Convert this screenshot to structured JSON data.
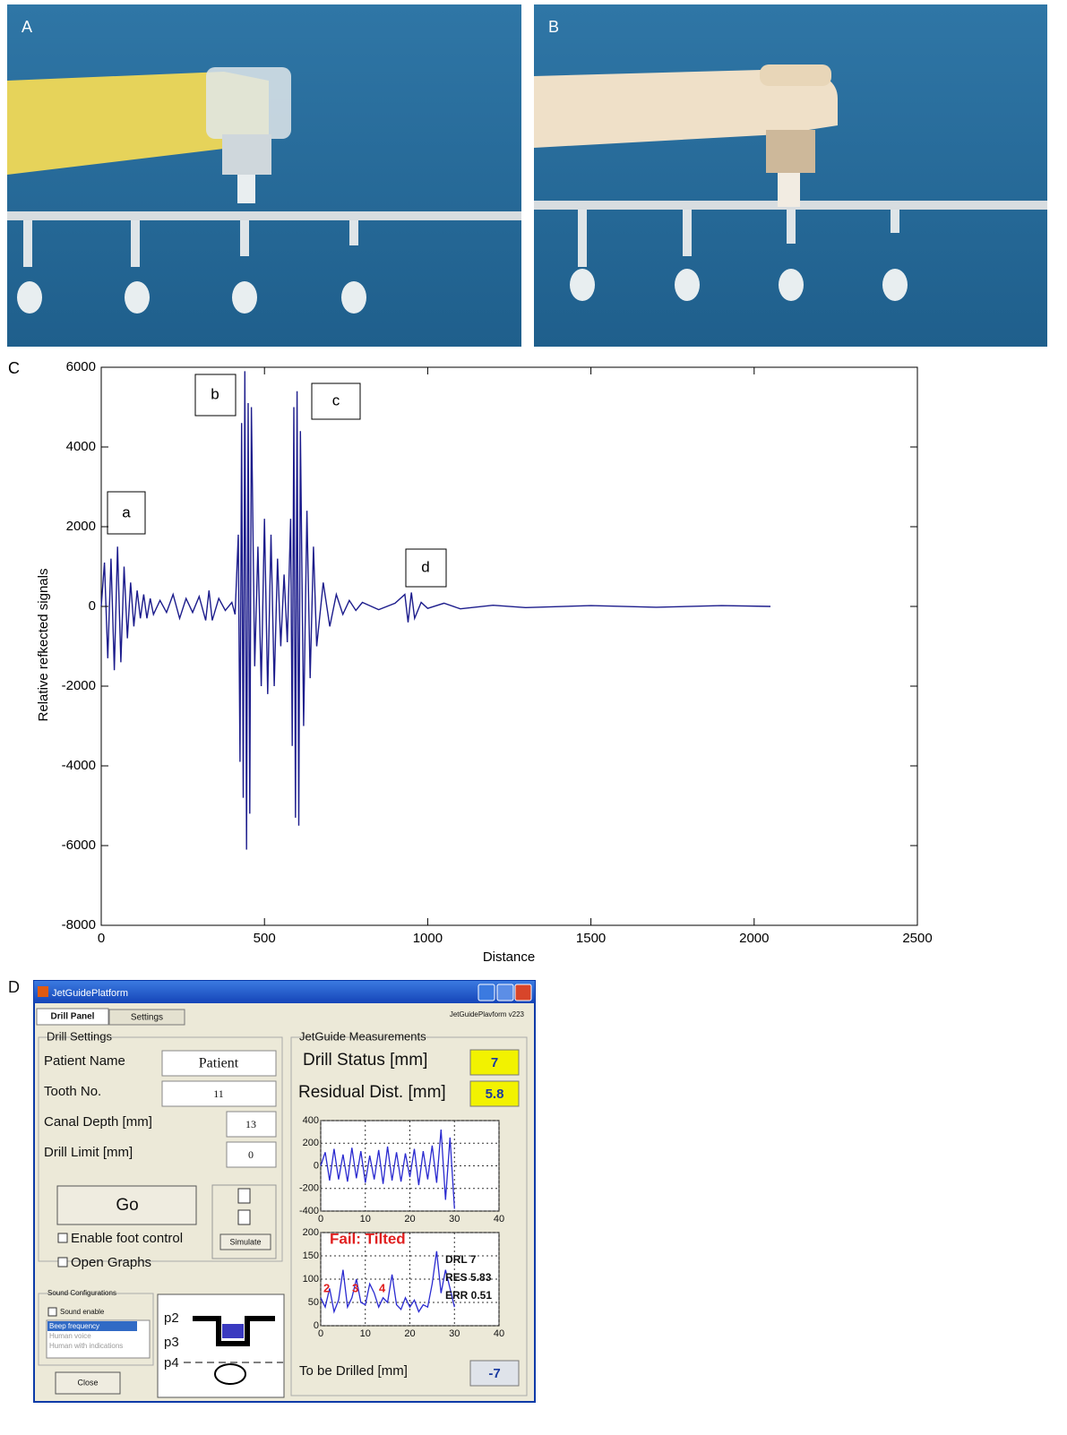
{
  "panels": {
    "a": "A",
    "b": "B",
    "c": "C",
    "d": "D"
  },
  "chart_data": {
    "type": "line",
    "x_label": "Distance",
    "y_label": "Relative refkected signals",
    "color": "#1c1c8c",
    "annotations": [
      "a",
      "b",
      "c",
      "d"
    ],
    "xlim": [
      0,
      2500
    ],
    "xticks": [
      0,
      500,
      1000,
      1500,
      2000,
      2500
    ],
    "ylim": [
      -8000,
      6000
    ],
    "yticks": [
      -8000,
      -6000,
      -4000,
      -2000,
      0,
      2000,
      4000,
      6000
    ],
    "x": [
      0,
      10,
      20,
      30,
      40,
      50,
      60,
      70,
      80,
      90,
      100,
      110,
      120,
      130,
      140,
      150,
      160,
      180,
      200,
      220,
      240,
      260,
      280,
      300,
      320,
      330,
      340,
      360,
      380,
      400,
      410,
      420,
      425,
      430,
      435,
      440,
      445,
      450,
      455,
      460,
      470,
      480,
      490,
      500,
      510,
      520,
      530,
      540,
      550,
      560,
      570,
      580,
      585,
      590,
      595,
      600,
      605,
      610,
      620,
      630,
      640,
      650,
      660,
      680,
      700,
      720,
      740,
      760,
      780,
      800,
      850,
      900,
      930,
      940,
      950,
      960,
      980,
      1000,
      1050,
      1100,
      1200,
      1300,
      1500,
      1700,
      1900,
      2050
    ],
    "values": [
      0,
      1100,
      -1300,
      1200,
      -1600,
      1500,
      -1400,
      1000,
      -800,
      600,
      -500,
      400,
      -300,
      300,
      -300,
      200,
      -200,
      150,
      -150,
      300,
      -300,
      200,
      -150,
      250,
      -350,
      400,
      -350,
      200,
      -100,
      100,
      -200,
      1800,
      -3900,
      4600,
      -4800,
      5900,
      -6100,
      5100,
      -5200,
      5000,
      -1500,
      1500,
      -2000,
      2200,
      -2200,
      1800,
      -2000,
      1200,
      -1000,
      800,
      -900,
      2200,
      -3500,
      5000,
      -5300,
      5400,
      -5500,
      4400,
      -3000,
      2400,
      -1800,
      1500,
      -1000,
      600,
      -500,
      300,
      -200,
      150,
      -100,
      100,
      -80,
      80,
      300,
      -400,
      350,
      -300,
      100,
      -50,
      80,
      -60,
      30,
      -30,
      20,
      -20,
      20,
      0
    ]
  },
  "ui": {
    "window_title": "JetGuidePlatform",
    "tabs": [
      "Drill Panel",
      "Settings"
    ],
    "version": "JetGuidePlavform v223",
    "drill_settings": {
      "title": "Drill Settings",
      "fields": [
        [
          "Patient Name",
          "Patient"
        ],
        [
          "Tooth No.",
          "11"
        ],
        [
          "Canal Depth [mm]",
          "13"
        ],
        [
          "Drill Limit [mm]",
          "0"
        ]
      ],
      "go": "Go",
      "checkboxes": [
        "Enable foot control",
        "Open Graphs"
      ],
      "simulate": "Simulate"
    },
    "sound": {
      "title": "Sound Configurations",
      "enable": "Sound enable",
      "options": [
        "Beep frequency",
        "Human voice",
        "Human with indications"
      ]
    },
    "close": "Close",
    "diagram": [
      "p2",
      "p3",
      "p4"
    ],
    "measurements": {
      "title": "JetGuide Measurements",
      "drill_status": [
        "Drill Status [mm]",
        "7"
      ],
      "residual": [
        "Residual Dist. [mm]",
        "5.8"
      ],
      "to_drill": [
        "To be Drilled [mm]",
        "-7"
      ]
    },
    "plot1": {
      "xlim": [
        0,
        40
      ],
      "ylim": [
        -400,
        400
      ],
      "xticks": [
        0,
        10,
        20,
        30,
        40
      ],
      "yticks": [
        400,
        200,
        0,
        -200,
        -400
      ],
      "x": [
        0,
        1,
        2,
        3,
        4,
        5,
        6,
        7,
        8,
        9,
        10,
        11,
        12,
        13,
        14,
        15,
        16,
        17,
        18,
        19,
        20,
        21,
        22,
        23,
        24,
        25,
        26,
        27,
        28,
        29,
        30
      ],
      "values": [
        0,
        120,
        -130,
        150,
        -120,
        100,
        -140,
        160,
        -110,
        130,
        -150,
        90,
        -120,
        140,
        -160,
        170,
        -130,
        120,
        -140,
        110,
        -100,
        150,
        -170,
        130,
        -120,
        180,
        -150,
        320,
        -300,
        250,
        -380
      ]
    },
    "plot2": {
      "xlim": [
        0,
        40
      ],
      "ylim": [
        0,
        200
      ],
      "xticks": [
        0,
        10,
        20,
        30,
        40
      ],
      "yticks": [
        200,
        150,
        100,
        50,
        0
      ],
      "x": [
        0,
        1,
        2,
        3,
        4,
        5,
        6,
        7,
        8,
        9,
        10,
        11,
        12,
        13,
        14,
        15,
        16,
        17,
        18,
        19,
        20,
        21,
        22,
        23,
        24,
        25,
        26,
        27,
        28,
        29,
        30
      ],
      "values": [
        60,
        40,
        80,
        30,
        55,
        120,
        40,
        60,
        100,
        50,
        45,
        90,
        70,
        40,
        60,
        50,
        110,
        45,
        35,
        60,
        40,
        55,
        30,
        45,
        40,
        90,
        160,
        70,
        120,
        80,
        40
      ],
      "status": "Fail: Tilted",
      "markers": [
        "2",
        "3",
        "4"
      ],
      "readouts": [
        "DRL 7",
        "RES 5.83",
        "ERR 0.51"
      ]
    }
  }
}
